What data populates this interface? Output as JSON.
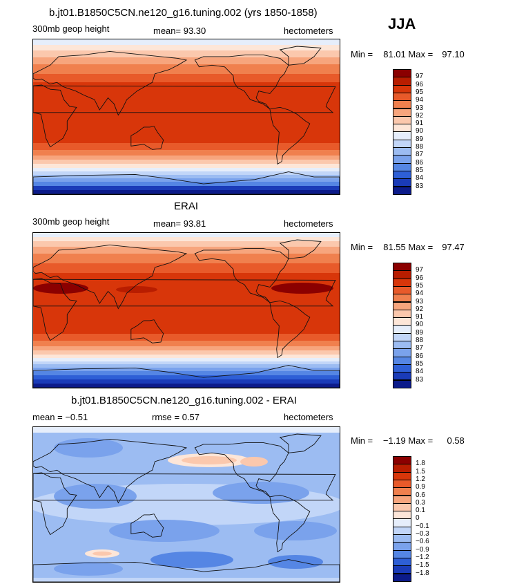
{
  "season": "JJA",
  "panels": [
    {
      "title": "b.jt01.B1850C5CN.ne120_g16.tuning.002 (yrs 1850-1858)",
      "left_label": "300mb geop height",
      "center_label": "mean=  93.30",
      "right_label": "hectometers",
      "min_label": "Min =",
      "min_value": "81.01",
      "max_label": "Max =",
      "max_value": "97.10",
      "colorbar": [
        "97",
        "96",
        "95",
        "94",
        "93",
        "92",
        "91",
        "90",
        "89",
        "88",
        "87",
        "86",
        "85",
        "84",
        "83"
      ],
      "colors": [
        "#8b0000",
        "#b81d00",
        "#d8360a",
        "#e85a2a",
        "#f0804e",
        "#f7a57d",
        "#fbc8ad",
        "#fde6d8",
        "#e6eefb",
        "#c2d6f8",
        "#9cbcf2",
        "#7aa2ec",
        "#5586e4",
        "#2e5fd6",
        "#1a3bb8",
        "#0c1b8a"
      ],
      "chart_data": {
        "type": "heatmap",
        "variable": "300mb geop height",
        "units": "hectometers",
        "season": "JJA",
        "mean": 93.3,
        "min": 81.01,
        "max": 97.1,
        "levels": [
          83,
          84,
          85,
          86,
          87,
          88,
          89,
          90,
          91,
          92,
          93,
          94,
          95,
          96,
          97
        ]
      }
    },
    {
      "title": "ERAI",
      "left_label": "300mb geop height",
      "center_label": "mean=  93.81",
      "right_label": "hectometers",
      "min_label": "Min =",
      "min_value": "81.55",
      "max_label": "Max =",
      "max_value": "97.47",
      "colorbar": [
        "97",
        "96",
        "95",
        "94",
        "93",
        "92",
        "91",
        "90",
        "89",
        "88",
        "87",
        "86",
        "85",
        "84",
        "83"
      ],
      "colors": [
        "#8b0000",
        "#b81d00",
        "#d8360a",
        "#e85a2a",
        "#f0804e",
        "#f7a57d",
        "#fbc8ad",
        "#fde6d8",
        "#e6eefb",
        "#c2d6f8",
        "#9cbcf2",
        "#7aa2ec",
        "#5586e4",
        "#2e5fd6",
        "#1a3bb8",
        "#0c1b8a"
      ],
      "chart_data": {
        "type": "heatmap",
        "variable": "300mb geop height",
        "units": "hectometers",
        "season": "JJA",
        "mean": 93.81,
        "min": 81.55,
        "max": 97.47,
        "levels": [
          83,
          84,
          85,
          86,
          87,
          88,
          89,
          90,
          91,
          92,
          93,
          94,
          95,
          96,
          97
        ]
      }
    },
    {
      "title": "b.jt01.B1850C5CN.ne120_g16.tuning.002 - ERAI",
      "left_label": "mean =   −0.51",
      "center_label": "rmse =     0.57",
      "right_label": "hectometers",
      "min_label": "Min =",
      "min_value": "−1.19",
      "max_label": "Max =",
      "max_value": "0.58",
      "colorbar": [
        "1.8",
        "1.5",
        "1.2",
        "0.9",
        "0.6",
        "0.3",
        "0.1",
        "0",
        "−0.1",
        "−0.3",
        "−0.6",
        "−0.9",
        "−1.2",
        "−1.5",
        "−1.8"
      ],
      "colors": [
        "#8b0000",
        "#b81d00",
        "#d8360a",
        "#e85a2a",
        "#f0804e",
        "#f7a57d",
        "#fbc8ad",
        "#fde6d8",
        "#e6eefb",
        "#c2d6f8",
        "#9cbcf2",
        "#7aa2ec",
        "#5586e4",
        "#2e5fd6",
        "#1a3bb8",
        "#0c1b8a"
      ],
      "chart_data": {
        "type": "heatmap",
        "variable": "300mb geop height difference",
        "units": "hectometers",
        "season": "JJA",
        "mean": -0.51,
        "rmse": 0.57,
        "min": -1.19,
        "max": 0.58,
        "levels": [
          -1.8,
          -1.5,
          -1.2,
          -0.9,
          -0.6,
          -0.3,
          -0.1,
          0,
          0.1,
          0.3,
          0.6,
          0.9,
          1.2,
          1.5,
          1.8
        ]
      }
    }
  ]
}
